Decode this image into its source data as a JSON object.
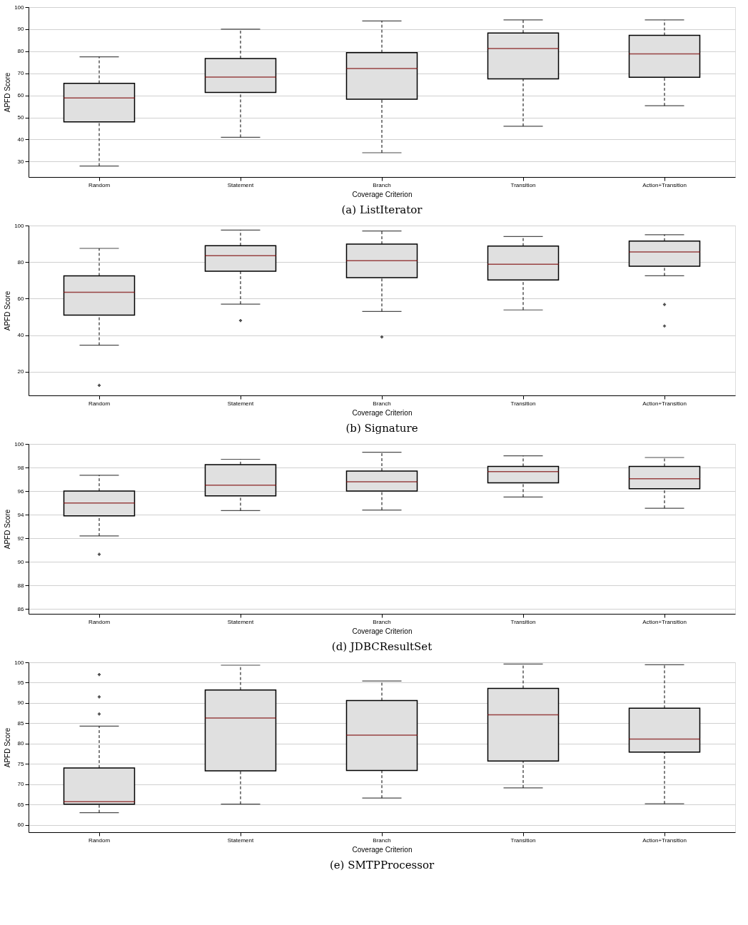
{
  "chart_data": [
    {
      "type": "box",
      "xlabel": "Coverage Criterion",
      "ylabel": "APFD Score",
      "annotations": [
        "(a) ListIterator"
      ],
      "grid": "y",
      "marker": "cross",
      "ylim": [
        23,
        100
      ],
      "yticks": [
        30,
        40,
        50,
        60,
        70,
        80,
        90,
        100
      ],
      "categories": [
        "Random",
        "Statement",
        "Branch",
        "Transition",
        "Action+Transition"
      ],
      "series": [
        {
          "color": "#e0e0e0",
          "boxes": [
            {
              "low": 28,
              "q1": 48,
              "median": 58.8,
              "q3": 65.5,
              "high": 77.5
            },
            {
              "low": 41,
              "q1": 61.3,
              "median": 68.3,
              "q3": 76.7,
              "high": 90
            },
            {
              "low": 34,
              "q1": 58.3,
              "median": 72.2,
              "q3": 79.4,
              "high": 93.7
            },
            {
              "low": 46,
              "q1": 67.5,
              "median": 81.2,
              "q3": 88.3,
              "high": 94.2
            },
            {
              "low": 55.3,
              "q1": 68.2,
              "median": 78.8,
              "q3": 87.2,
              "high": 94.2
            }
          ]
        }
      ]
    },
    {
      "type": "box",
      "xlabel": "Coverage Criterion",
      "ylabel": "APFD Score",
      "annotations": [
        "(b) Signature"
      ],
      "grid": "y",
      "marker": "cross",
      "ylim": [
        7,
        100
      ],
      "yticks": [
        20,
        40,
        60,
        80,
        100
      ],
      "categories": [
        "Random",
        "Statement",
        "Branch",
        "Transition",
        "Action+Transition"
      ],
      "series": [
        {
          "color": "#e0e0e0",
          "boxes": [
            {
              "low": 34.5,
              "q1": 51,
              "median": 63.5,
              "q3": 72.5,
              "high": 87.5,
              "outliers": [
                12.5
              ]
            },
            {
              "low": 57,
              "q1": 75,
              "median": 83.5,
              "q3": 89,
              "high": 97.5,
              "outliers": [
                48
              ]
            },
            {
              "low": 53,
              "q1": 71.5,
              "median": 80.8,
              "q3": 89.8,
              "high": 97,
              "outliers": [
                39
              ]
            },
            {
              "low": 53.8,
              "q1": 70.2,
              "median": 78.8,
              "q3": 88.8,
              "high": 94
            },
            {
              "low": 72.5,
              "q1": 77.7,
              "median": 85.5,
              "q3": 91.5,
              "high": 95,
              "outliers": [
                56.8,
                45
              ]
            }
          ]
        }
      ]
    },
    {
      "type": "box",
      "xlabel": "Coverage Criterion",
      "ylabel": "APFD Score",
      "annotations": [
        "(d) JDBCResultSet"
      ],
      "grid": "y",
      "marker": "cross",
      "ylim": [
        85.6,
        100
      ],
      "yticks": [
        86,
        88,
        90,
        92,
        94,
        96,
        98,
        100
      ],
      "categories": [
        "Random",
        "Statement",
        "Branch",
        "Transition",
        "Action+Transition"
      ],
      "series": [
        {
          "color": "#e0e0e0",
          "boxes": [
            {
              "low": 92.2,
              "q1": 93.9,
              "median": 95.0,
              "q3": 96.0,
              "high": 97.35,
              "outliers": [
                90.65
              ]
            },
            {
              "low": 94.35,
              "q1": 95.6,
              "median": 96.5,
              "q3": 98.25,
              "high": 98.7
            },
            {
              "low": 94.4,
              "q1": 96.0,
              "median": 96.8,
              "q3": 97.7,
              "high": 99.3
            },
            {
              "low": 95.5,
              "q1": 96.7,
              "median": 97.65,
              "q3": 98.1,
              "high": 99.0
            },
            {
              "low": 94.55,
              "q1": 96.2,
              "median": 97.05,
              "q3": 98.1,
              "high": 98.85
            }
          ]
        }
      ]
    },
    {
      "type": "box",
      "xlabel": "Coverage Criterion",
      "ylabel": "APFD Score",
      "annotations": [
        "(e) SMTPProcessor"
      ],
      "grid": "y",
      "marker": "cross",
      "ylim": [
        58.2,
        100
      ],
      "yticks": [
        60,
        65,
        70,
        75,
        80,
        85,
        90,
        95,
        100
      ],
      "categories": [
        "Random",
        "Statement",
        "Branch",
        "Transition",
        "Action+Transition"
      ],
      "series": [
        {
          "color": "#e0e0e0",
          "boxes": [
            {
              "low": 63,
              "q1": 65.1,
              "median": 65.7,
              "q3": 74,
              "high": 84.3,
              "outliers": [
                87.3,
                91.5,
                97
              ]
            },
            {
              "low": 65.1,
              "q1": 73.3,
              "median": 86.3,
              "q3": 93.2,
              "high": 99.3
            },
            {
              "low": 66.6,
              "q1": 73.4,
              "median": 82.1,
              "q3": 90.6,
              "high": 95.4
            },
            {
              "low": 69.1,
              "q1": 75.7,
              "median": 87.1,
              "q3": 93.6,
              "high": 99.6
            },
            {
              "low": 65.2,
              "q1": 77.9,
              "median": 81.1,
              "q3": 88.7,
              "high": 99.4
            }
          ]
        }
      ]
    }
  ]
}
